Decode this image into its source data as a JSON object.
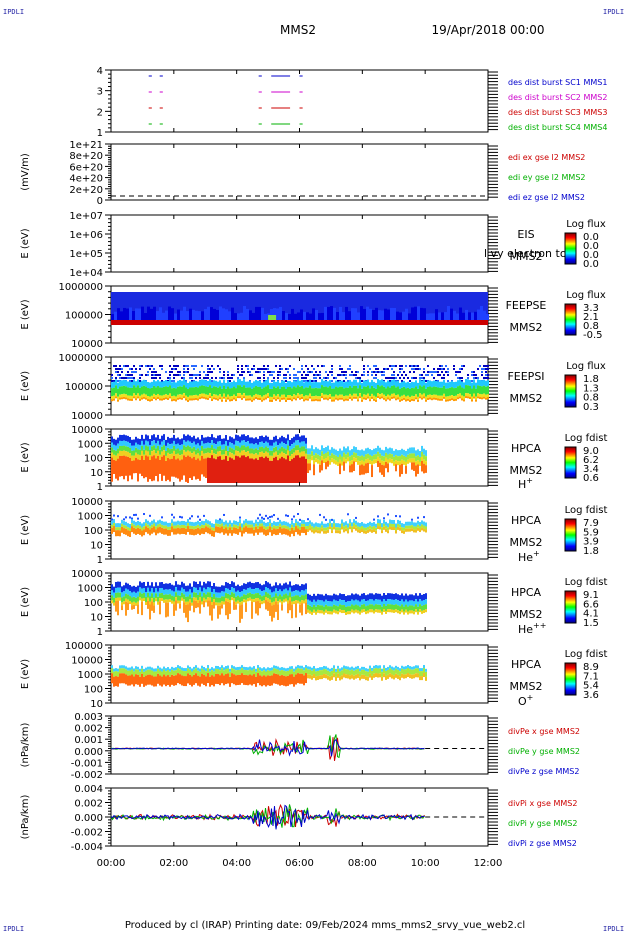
{
  "page": {
    "corner_tl": "IPDLI",
    "corner_tr": "IPDLI",
    "corner_bl": "IPDLI",
    "corner_br": "IPDLI",
    "spacecraft": "MMS2",
    "date": "19/Apr/2018 00:00",
    "footer": "Produced by cl (IRAP)   Printing date: 09/Feb/2024   mms_mms2_srvy_vue_web2.cl"
  },
  "colors": {
    "red": "#cc0000",
    "green": "#00b000",
    "blue": "#0000cc",
    "magenta": "#cc00cc"
  },
  "chart_data": [
    {
      "type": "line",
      "panel": "des-dist-burst",
      "x": [
        "00:00",
        "02:00",
        "04:00",
        "06:00",
        "08:00",
        "10:00",
        "12:00"
      ],
      "yticks": [
        "1",
        "2",
        "3",
        "4"
      ],
      "segments_hours": [
        [
          1.2,
          1.3
        ],
        [
          1.55,
          1.65
        ],
        [
          4.7,
          4.8
        ],
        [
          5.1,
          5.7
        ],
        [
          6.0,
          6.1
        ]
      ],
      "legend": [
        {
          "name": "des dist burst SC1 MMS1",
          "color": "#0000cc",
          "level": 4
        },
        {
          "name": "des dist burst SC2 MMS2",
          "color": "#cc00cc",
          "level": 3
        },
        {
          "name": "des dist burst SC3 MMS3",
          "color": "#cc0000",
          "level": 2
        },
        {
          "name": "des dist burst SC4 MMS4",
          "color": "#00b000",
          "level": 1
        }
      ]
    },
    {
      "type": "line",
      "panel": "edi",
      "ylabel": "(mV/m)",
      "yticks": [
        "1e+21",
        "8e+20",
        "6e+20",
        "4e+20",
        "2e+20",
        "0"
      ],
      "legend": [
        {
          "name": "edi ex gse l2 MMS2",
          "color": "#cc0000"
        },
        {
          "name": "edi ey gse l2 MMS2",
          "color": "#00b000"
        },
        {
          "name": "edi ez gse l2 MMS2",
          "color": "#0000cc"
        }
      ]
    },
    {
      "type": "heatmap",
      "panel": "eis",
      "ylabel": "E (eV)",
      "yticks": [
        "1e+07",
        "1e+06",
        "1e+05",
        "1e+04"
      ],
      "labels": [
        "EIS",
        "MMS2"
      ],
      "overlay_text": "l vy electron to",
      "colorbar_title": "Log flux",
      "colorbar_ticks": [
        "0.0",
        "0.0",
        "0.0",
        "0.0"
      ]
    },
    {
      "type": "heatmap",
      "panel": "feeps-e",
      "ylabel": "E (eV)",
      "yticks": [
        "1000000",
        "100000",
        "10000"
      ],
      "labels": [
        "FEEPSE",
        "MMS2"
      ],
      "colorbar_title": "Log flux",
      "colorbar_ticks": [
        "3.3",
        "2.1",
        "0.8",
        "-0.5"
      ],
      "coverage_hours": [
        0,
        12
      ]
    },
    {
      "type": "heatmap",
      "panel": "feeps-i",
      "ylabel": "E (eV)",
      "yticks": [
        "1000000",
        "100000",
        "10000"
      ],
      "labels": [
        "FEEPSI",
        "MMS2"
      ],
      "colorbar_title": "Log flux",
      "colorbar_ticks": [
        "1.8",
        "1.3",
        "0.8",
        "0.3"
      ],
      "coverage_hours": [
        0,
        12
      ]
    },
    {
      "type": "heatmap",
      "panel": "hpca-h",
      "ylabel": "E (eV)",
      "yticks": [
        "10000",
        "1000",
        "100",
        "10",
        "1"
      ],
      "labels": [
        "HPCA",
        "MMS2"
      ],
      "species": "H",
      "species_sup": "+",
      "colorbar_title": "Log fdist",
      "colorbar_ticks": [
        "9.0",
        "6.2",
        "3.4",
        "0.6"
      ],
      "coverage_hours": [
        0,
        10
      ]
    },
    {
      "type": "heatmap",
      "panel": "hpca-he",
      "ylabel": "E (eV)",
      "yticks": [
        "10000",
        "1000",
        "100",
        "10",
        "1"
      ],
      "labels": [
        "HPCA",
        "MMS2"
      ],
      "species": "He",
      "species_sup": "+",
      "colorbar_title": "Log fdist",
      "colorbar_ticks": [
        "7.9",
        "5.9",
        "3.9",
        "1.8"
      ],
      "coverage_hours": [
        0,
        10
      ]
    },
    {
      "type": "heatmap",
      "panel": "hpca-hepp",
      "ylabel": "E (eV)",
      "yticks": [
        "10000",
        "1000",
        "100",
        "10",
        "1"
      ],
      "labels": [
        "HPCA",
        "MMS2"
      ],
      "species": "He",
      "species_sup": "++",
      "colorbar_title": "Log fdist",
      "colorbar_ticks": [
        "9.1",
        "6.6",
        "4.1",
        "1.5"
      ],
      "coverage_hours": [
        0,
        10
      ]
    },
    {
      "type": "heatmap",
      "panel": "hpca-o",
      "ylabel": "E (eV)",
      "yticks": [
        "100000",
        "10000",
        "1000",
        "100",
        "10"
      ],
      "labels": [
        "HPCA",
        "MMS2"
      ],
      "species": "O",
      "species_sup": "+",
      "colorbar_title": "Log fdist",
      "colorbar_ticks": [
        "8.9",
        "7.1",
        "5.4",
        "3.6"
      ],
      "coverage_hours": [
        0,
        10
      ]
    },
    {
      "type": "line",
      "panel": "divpe",
      "ylabel": "(nPa/km)",
      "yticks": [
        "0.003",
        "0.002",
        "0.001",
        "0.000",
        "-0.001",
        "-0.002"
      ],
      "ylim": [
        -0.0025,
        0.0032
      ],
      "legend": [
        {
          "name": "divPe x gse MMS2",
          "color": "#cc0000"
        },
        {
          "name": "divPe y gse MMS2",
          "color": "#00b000"
        },
        {
          "name": "divPe z gse MMS2",
          "color": "#0000cc"
        }
      ]
    },
    {
      "type": "line",
      "panel": "divpi",
      "ylabel": "(nPa/km)",
      "yticks": [
        "0.004",
        "0.002",
        "0.000",
        "-0.002",
        "-0.004"
      ],
      "ylim": [
        -0.005,
        0.005
      ],
      "legend": [
        {
          "name": "divPi x gse MMS2",
          "color": "#cc0000"
        },
        {
          "name": "divPi y gse MMS2",
          "color": "#00b000"
        },
        {
          "name": "divPi z gse MMS2",
          "color": "#0000cc"
        }
      ]
    }
  ],
  "time_axis": [
    "00:00",
    "02:00",
    "04:00",
    "06:00",
    "08:00",
    "10:00",
    "12:00"
  ]
}
